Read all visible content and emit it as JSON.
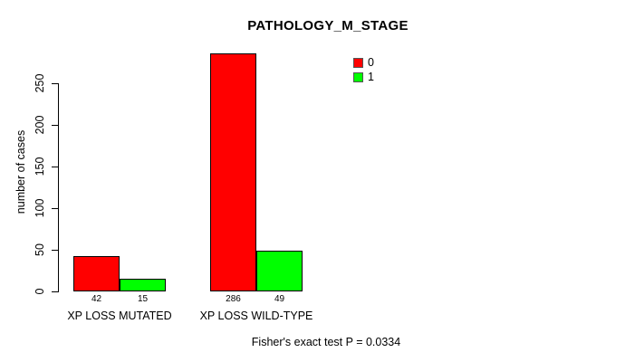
{
  "chart_data": {
    "type": "bar",
    "title": "PATHOLOGY_M_STAGE",
    "ylabel": "number of cases",
    "xlabel": "",
    "categories": [
      "XP LOSS MUTATED",
      "XP LOSS WILD-TYPE"
    ],
    "series": [
      {
        "name": "0",
        "color": "#FF0000",
        "values": [
          42,
          286
        ]
      },
      {
        "name": "1",
        "color": "#00FF00",
        "values": [
          15,
          49
        ]
      }
    ],
    "yticks": [
      0,
      50,
      100,
      150,
      200,
      250
    ],
    "ylim": [
      0,
      290
    ],
    "grid": false,
    "legend_position": "top-right",
    "bar_border_color": "#000000",
    "axis_color": "#000000",
    "annotation": "Fisher's exact test P = 0.0334"
  }
}
